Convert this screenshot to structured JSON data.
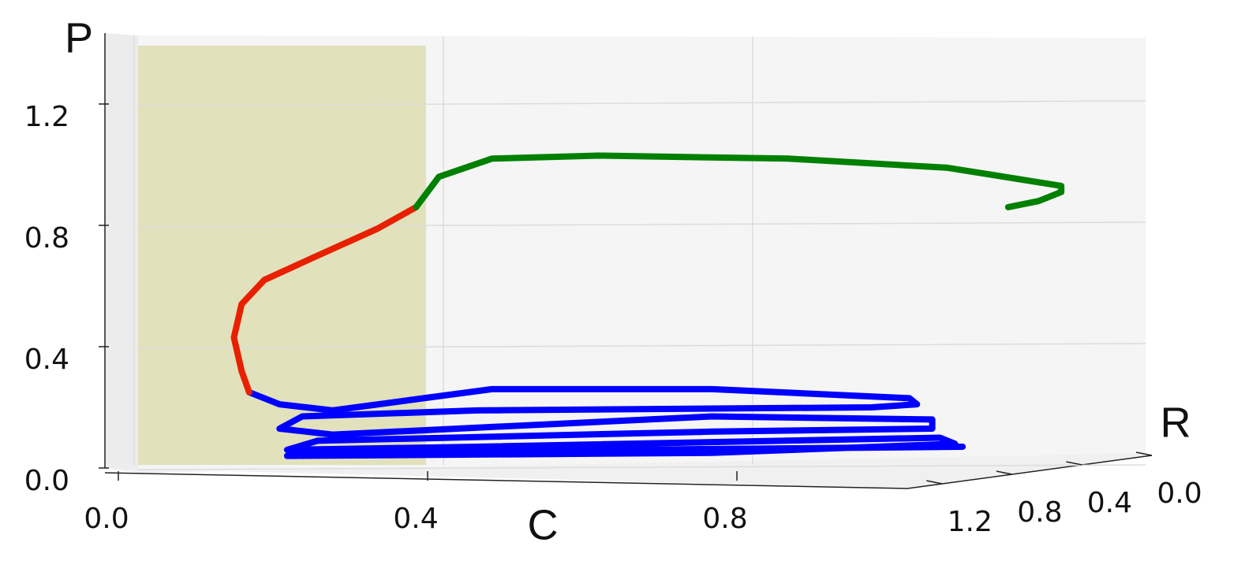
{
  "chart_data": {
    "type": "line3d",
    "x_label": "C",
    "y_label": "P",
    "z_label": "R",
    "xlim": [
      0,
      1.4
    ],
    "ylim": [
      0,
      1.4
    ],
    "zlim": [
      0,
      1.4
    ],
    "xticks": [
      {
        "value": 0,
        "label": "0.0"
      },
      0.4,
      0.8
    ],
    "yticks": [
      {
        "value": 0,
        "label": "0.0"
      },
      0.4,
      0.8,
      1.2
    ],
    "zticks": [
      {
        "value": 0,
        "label": "0.0"
      },
      0.4,
      0.8,
      1.2
    ],
    "grid": true,
    "series": [
      {
        "color": "#0000ff",
        "x": [
          0.19,
          0.23,
          0.3,
          0.42,
          0.51,
          0.8,
          1.06,
          1.07,
          1.01,
          0.49,
          0.26,
          0.23,
          0.3,
          0.8,
          1.09,
          1.09,
          0.8,
          0.28,
          0.24,
          0.49,
          1.1,
          1.12,
          0.8,
          0.24,
          0.69,
          1.13
        ],
        "values": [
          0.25,
          0.21,
          0.19,
          0.23,
          0.26,
          0.26,
          0.23,
          0.21,
          0.2,
          0.19,
          0.17,
          0.13,
          0.11,
          0.17,
          0.16,
          0.13,
          0.12,
          0.09,
          0.06,
          0.07,
          0.1,
          0.08,
          0.05,
          0.04,
          0.06,
          0.07
        ]
      },
      {
        "color": "#e82000",
        "x": [
          0.19,
          0.18,
          0.17,
          0.18,
          0.21,
          0.28,
          0.36,
          0.41
        ],
        "values": [
          0.25,
          0.32,
          0.43,
          0.54,
          0.62,
          0.7,
          0.79,
          0.86
        ]
      },
      {
        "color": "#008000",
        "x": [
          0.41,
          0.44,
          0.51,
          0.65,
          0.9,
          1.11,
          1.26,
          1.26,
          1.23,
          1.19
        ],
        "values": [
          0.86,
          0.96,
          1.02,
          1.03,
          1.02,
          0.99,
          0.93,
          0.91,
          0.88,
          0.86
        ]
      }
    ]
  }
}
